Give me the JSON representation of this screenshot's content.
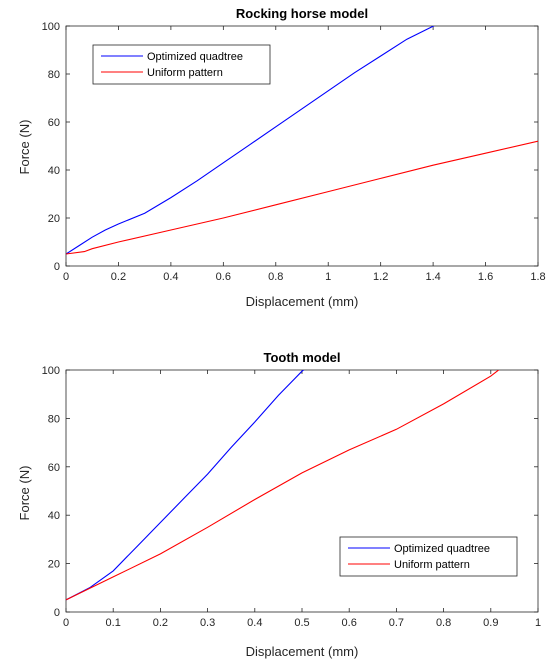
{
  "chart_data": [
    {
      "type": "line",
      "title": "Rocking horse model",
      "xlabel": "Displacement (mm)",
      "ylabel": "Force (N)",
      "xlim": [
        0,
        1.8
      ],
      "ylim": [
        0,
        100
      ],
      "xticks": [
        0,
        0.2,
        0.4,
        0.6,
        0.8,
        1,
        1.2,
        1.4,
        1.6,
        1.8
      ],
      "xtick_labels": [
        "0",
        "0.2",
        "0.4",
        "0.6",
        "0.8",
        "1",
        "1.2",
        "1.4",
        "1.6",
        "1.8"
      ],
      "yticks": [
        0,
        20,
        40,
        60,
        80,
        100
      ],
      "ytick_labels": [
        "0",
        "20",
        "40",
        "60",
        "80",
        "100"
      ],
      "grid": false,
      "legend_position": "top-left",
      "series": [
        {
          "name": "Optimized quadtree",
          "color": "#0000ff",
          "x": [
            0,
            0.05,
            0.1,
            0.15,
            0.2,
            0.3,
            0.4,
            0.5,
            0.6,
            0.7,
            0.8,
            0.9,
            1.0,
            1.1,
            1.2,
            1.3,
            1.42
          ],
          "y": [
            5,
            8.5,
            12,
            15,
            17.5,
            22,
            28.5,
            35.5,
            43,
            50.5,
            58,
            65.5,
            73,
            80.5,
            87.5,
            94.5,
            101
          ]
        },
        {
          "name": "Uniform pattern",
          "color": "#ff0000",
          "x": [
            0,
            0.07,
            0.1,
            0.2,
            0.4,
            0.6,
            0.8,
            1.0,
            1.2,
            1.4,
            1.6,
            1.8
          ],
          "y": [
            5,
            6,
            7.2,
            10,
            15,
            20,
            25.5,
            31,
            36.5,
            42,
            47,
            52
          ]
        }
      ]
    },
    {
      "type": "line",
      "title": "Tooth model",
      "xlabel": "Displacement (mm)",
      "ylabel": "Force (N)",
      "xlim": [
        0,
        1
      ],
      "ylim": [
        0,
        100
      ],
      "xticks": [
        0,
        0.1,
        0.2,
        0.3,
        0.4,
        0.5,
        0.6,
        0.7,
        0.8,
        0.9,
        1
      ],
      "xtick_labels": [
        "0",
        "0.1",
        "0.2",
        "0.3",
        "0.4",
        "0.5",
        "0.6",
        "0.7",
        "0.8",
        "0.9",
        "1"
      ],
      "yticks": [
        0,
        20,
        40,
        60,
        80,
        100
      ],
      "ytick_labels": [
        "0",
        "20",
        "40",
        "60",
        "80",
        "100"
      ],
      "grid": false,
      "legend_position": "bottom-right",
      "series": [
        {
          "name": "Optimized quadtree",
          "color": "#0000ff",
          "x": [
            0,
            0.05,
            0.1,
            0.15,
            0.2,
            0.25,
            0.3,
            0.35,
            0.4,
            0.45,
            0.5,
            0.51
          ],
          "y": [
            5,
            10,
            17,
            27,
            37,
            47,
            57,
            68,
            78.5,
            89.5,
            99.5,
            101
          ]
        },
        {
          "name": "Uniform pattern",
          "color": "#ff0000",
          "x": [
            0,
            0.1,
            0.2,
            0.3,
            0.4,
            0.5,
            0.6,
            0.7,
            0.8,
            0.9,
            0.92
          ],
          "y": [
            5,
            14.5,
            24,
            35,
            46.5,
            57.5,
            67,
            75.5,
            86,
            97.5,
            100.5
          ]
        }
      ]
    }
  ]
}
